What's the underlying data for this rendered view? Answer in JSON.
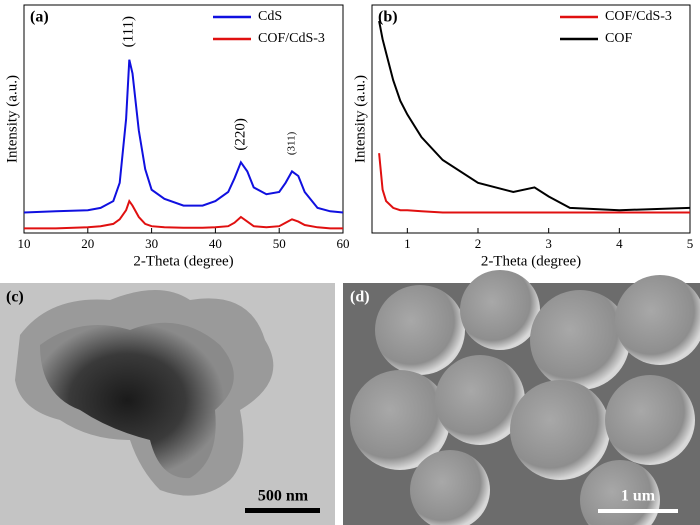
{
  "chart_data": [
    {
      "type": "line",
      "panel": "(a)",
      "xlabel": "2-Theta (degree)",
      "ylabel": "Intensity (a.u.)",
      "x": [
        10,
        15,
        20,
        22,
        24,
        25,
        26,
        26.5,
        27,
        28,
        29,
        30,
        32,
        35,
        38,
        40,
        42,
        43,
        44,
        45,
        46,
        48,
        50,
        51,
        52,
        53,
        54,
        56,
        58,
        60
      ],
      "series": [
        {
          "name": "CdS",
          "color": "#1010e0",
          "values": [
            9,
            9.5,
            10,
            11,
            14,
            22,
            50,
            76,
            70,
            45,
            28,
            19,
            15,
            12,
            12,
            14,
            18,
            24,
            31,
            27,
            20,
            17,
            18,
            22,
            27,
            25,
            18,
            11,
            9.5,
            9
          ]
        },
        {
          "name": "COF/CdS-3",
          "color": "#e01010",
          "values": [
            2,
            2,
            2.5,
            3,
            4,
            6,
            10,
            14,
            12,
            7,
            4,
            3,
            2.5,
            2.3,
            2.3,
            2.5,
            3,
            4.5,
            7,
            5,
            3,
            2.5,
            3,
            4.5,
            6,
            5,
            3.5,
            2.5,
            2,
            2
          ]
        }
      ],
      "annotations": [
        {
          "text": "(111)",
          "x": 26.5
        },
        {
          "text": "(220)",
          "x": 44
        },
        {
          "text": "(311)",
          "x": 52
        }
      ],
      "xlim": [
        10,
        60
      ],
      "xticks": [
        10,
        20,
        30,
        40,
        50,
        60
      ],
      "ylim": [
        0,
        100
      ],
      "legend": "upper right"
    },
    {
      "type": "line",
      "panel": "(b)",
      "xlabel": "2-Theta (degree)",
      "ylabel": "Intensity (a.u.)",
      "x": [
        0.6,
        0.65,
        0.7,
        0.8,
        0.9,
        1.0,
        1.2,
        1.5,
        2,
        2.5,
        2.8,
        3,
        3.3,
        4,
        5
      ],
      "series": [
        {
          "name": "COF/CdS-3",
          "color": "#e01010",
          "values": [
            35,
            19,
            14,
            11,
            10,
            10,
            9.5,
            9,
            9,
            9,
            9,
            9,
            9,
            9,
            9
          ]
        },
        {
          "name": "COF",
          "color": "#000000",
          "values": [
            93,
            85,
            79,
            67,
            58,
            52,
            42,
            32,
            22,
            18,
            20,
            16,
            11,
            10,
            11
          ]
        }
      ],
      "xlim": [
        0.5,
        5
      ],
      "xticks": [
        1,
        2,
        3,
        4,
        5
      ],
      "ylim": [
        0,
        100
      ],
      "legend": "upper right"
    }
  ],
  "images": [
    {
      "label": "(c)",
      "scale_bar": "500 nm"
    },
    {
      "label": "(d)",
      "scale_bar": "1 um"
    }
  ]
}
